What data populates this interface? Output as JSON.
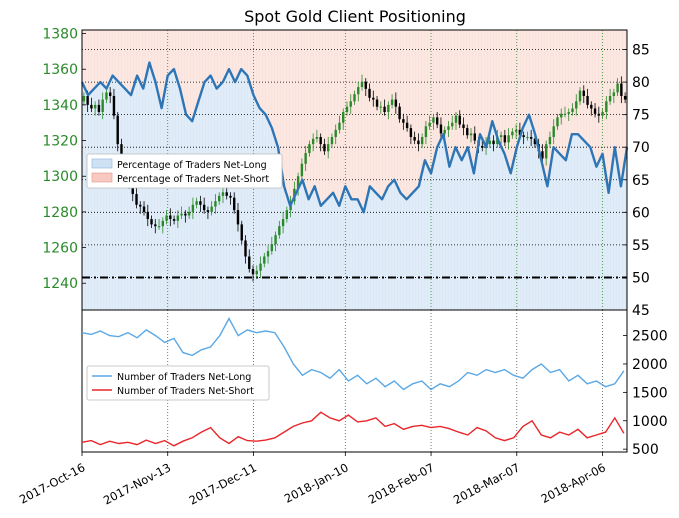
{
  "chart_data": [
    {
      "type": "line",
      "title": "Spot Gold Client Positioning",
      "left_axis": {
        "ylim": [
          1225,
          1382
        ],
        "ticks": [
          1240,
          1260,
          1280,
          1300,
          1320,
          1340,
          1360,
          1380
        ],
        "color": "#2a8a2a"
      },
      "right_axis": {
        "ylim": [
          45,
          88
        ],
        "ticks": [
          45,
          50,
          55,
          60,
          65,
          70,
          75,
          80,
          85
        ]
      },
      "x_tick_labels": [
        "2017-Oct-16",
        "2017-Nov-13",
        "2017-Dec-11",
        "2018-Jan-10",
        "2018-Feb-07",
        "2018-Mar-07",
        "2018-Apr-06"
      ],
      "x_range_days": [
        0,
        178
      ],
      "reference_line": 50,
      "legend": {
        "placement": "center-left",
        "entries": [
          "Percentage of Traders Net-Long",
          "Percentage of Traders Net-Short"
        ]
      },
      "colors": {
        "line": "#2e75b6",
        "long_fill": "#dbe9f7",
        "short_fill": "#fbe3dc",
        "candle_up": "#2a8a2a",
        "candle_down": "#000000"
      },
      "series": [
        {
          "name": "Percentage of Traders Net-Long",
          "x_days": [
            0,
            2,
            4,
            6,
            8,
            10,
            12,
            14,
            16,
            18,
            20,
            22,
            24,
            26,
            28,
            30,
            32,
            34,
            36,
            38,
            40,
            42,
            44,
            46,
            48,
            50,
            52,
            54,
            56,
            58,
            60,
            62,
            64,
            66,
            68,
            70,
            72,
            74,
            76,
            78,
            80,
            82,
            84,
            86,
            88,
            90,
            92,
            94,
            96,
            98,
            100,
            102,
            104,
            106,
            108,
            110,
            112,
            114,
            116,
            118,
            120,
            122,
            124,
            126,
            128,
            130,
            132,
            134,
            136,
            138,
            140,
            142,
            144,
            146,
            148,
            150,
            152,
            154,
            156,
            158,
            160,
            162,
            164,
            166,
            168,
            170,
            172,
            174,
            176,
            178
          ],
          "values": [
            80,
            78,
            79,
            80,
            79,
            81,
            80,
            79,
            78,
            81,
            79,
            83,
            80,
            76,
            81,
            82,
            79,
            75,
            74,
            77,
            80,
            81,
            79,
            80,
            82,
            80,
            82,
            81,
            78,
            76,
            75,
            73,
            70,
            64,
            61,
            63,
            65,
            62,
            64,
            61,
            62,
            63,
            61,
            64,
            62,
            62,
            60,
            64,
            63,
            62,
            64,
            65,
            63,
            62,
            63,
            64,
            68,
            66,
            70,
            72,
            67,
            70,
            68,
            70,
            66,
            72,
            70,
            74,
            71,
            69,
            66,
            70,
            73,
            75,
            72,
            68,
            64,
            70,
            69,
            68,
            72,
            72,
            71,
            70,
            67,
            69,
            63,
            70,
            64,
            70
          ]
        }
      ],
      "price_open": [
        1342,
        1345,
        1340,
        1338,
        1340,
        1336,
        1343,
        1347,
        1345,
        1334,
        1318,
        1308,
        1300,
        1295,
        1290,
        1284,
        1283,
        1280,
        1276,
        1273,
        1272,
        1272,
        1275,
        1278,
        1276,
        1275,
        1278,
        1279,
        1278,
        1280,
        1284,
        1286,
        1284,
        1281,
        1280,
        1283,
        1286,
        1289,
        1291,
        1289,
        1288,
        1281,
        1273,
        1264,
        1255,
        1248,
        1245,
        1247,
        1251,
        1255,
        1258,
        1262,
        1267,
        1272,
        1276,
        1281,
        1286,
        1293,
        1300,
        1307,
        1313,
        1318,
        1321,
        1322,
        1318,
        1314,
        1318,
        1322,
        1326,
        1330,
        1336,
        1339,
        1342,
        1346,
        1350,
        1353,
        1349,
        1344,
        1343,
        1339,
        1339,
        1336,
        1340,
        1343,
        1339,
        1332,
        1330,
        1327,
        1322,
        1320,
        1318,
        1322,
        1328,
        1330,
        1333,
        1329,
        1324,
        1326,
        1328,
        1330,
        1334,
        1329,
        1327,
        1323,
        1324,
        1320,
        1317,
        1316,
        1318,
        1320,
        1318,
        1322,
        1323,
        1319,
        1323,
        1325,
        1326,
        1323,
        1322,
        1322,
        1321,
        1318,
        1314,
        1310,
        1318,
        1322,
        1328,
        1333,
        1335,
        1335,
        1336,
        1338,
        1342,
        1348,
        1345,
        1340,
        1338,
        1335,
        1334,
        1336,
        1342,
        1345,
        1347,
        1352,
        1345
      ],
      "price_close": [
        1345,
        1340,
        1338,
        1340,
        1336,
        1343,
        1347,
        1345,
        1334,
        1318,
        1308,
        1300,
        1295,
        1290,
        1284,
        1283,
        1280,
        1276,
        1273,
        1272,
        1272,
        1275,
        1278,
        1276,
        1275,
        1278,
        1279,
        1278,
        1280,
        1284,
        1286,
        1284,
        1281,
        1280,
        1283,
        1286,
        1289,
        1291,
        1289,
        1288,
        1281,
        1273,
        1264,
        1255,
        1248,
        1245,
        1247,
        1251,
        1255,
        1258,
        1262,
        1267,
        1272,
        1276,
        1281,
        1286,
        1293,
        1300,
        1307,
        1313,
        1318,
        1321,
        1322,
        1318,
        1314,
        1318,
        1322,
        1326,
        1330,
        1336,
        1339,
        1342,
        1346,
        1350,
        1353,
        1349,
        1344,
        1343,
        1339,
        1339,
        1336,
        1340,
        1343,
        1339,
        1332,
        1330,
        1327,
        1322,
        1320,
        1318,
        1322,
        1328,
        1330,
        1333,
        1329,
        1324,
        1326,
        1328,
        1330,
        1334,
        1329,
        1327,
        1323,
        1324,
        1320,
        1317,
        1316,
        1318,
        1320,
        1318,
        1322,
        1323,
        1319,
        1323,
        1325,
        1326,
        1323,
        1322,
        1322,
        1321,
        1318,
        1314,
        1310,
        1318,
        1322,
        1328,
        1333,
        1335,
        1335,
        1336,
        1338,
        1342,
        1348,
        1345,
        1340,
        1338,
        1335,
        1334,
        1336,
        1342,
        1345,
        1347,
        1352,
        1345,
        1343
      ]
    },
    {
      "type": "line",
      "y_axis": {
        "ylim": [
          450,
          2950
        ],
        "ticks": [
          500,
          1000,
          1500,
          2000,
          2500
        ]
      },
      "legend": {
        "placement": "center-left",
        "entries": [
          "Number of Traders Net-Long",
          "Number of Traders Net-Short"
        ]
      },
      "colors": {
        "long": "#5aa8e6",
        "short": "#e8262a"
      },
      "series": [
        {
          "name": "Number of Traders Net-Long",
          "x_days": [
            0,
            3,
            6,
            9,
            12,
            15,
            18,
            21,
            24,
            27,
            30,
            33,
            36,
            39,
            42,
            45,
            48,
            51,
            54,
            57,
            60,
            63,
            66,
            69,
            72,
            75,
            78,
            81,
            84,
            87,
            90,
            93,
            96,
            99,
            102,
            105,
            108,
            111,
            114,
            117,
            120,
            123,
            126,
            129,
            132,
            135,
            138,
            141,
            144,
            147,
            150,
            153,
            156,
            159,
            162,
            165,
            168,
            171,
            174,
            177
          ],
          "values": [
            2550,
            2520,
            2580,
            2500,
            2480,
            2550,
            2460,
            2600,
            2500,
            2380,
            2450,
            2200,
            2150,
            2250,
            2300,
            2500,
            2800,
            2500,
            2600,
            2550,
            2580,
            2550,
            2300,
            2000,
            1800,
            1900,
            1850,
            1750,
            1900,
            1700,
            1800,
            1650,
            1750,
            1600,
            1700,
            1550,
            1650,
            1700,
            1550,
            1650,
            1600,
            1700,
            1850,
            1800,
            1900,
            1850,
            1900,
            1800,
            1750,
            1900,
            2000,
            1850,
            1900,
            1700,
            1800,
            1650,
            1700,
            1600,
            1650,
            1880
          ]
        },
        {
          "name": "Number of Traders Net-Short",
          "x_days": [
            0,
            3,
            6,
            9,
            12,
            15,
            18,
            21,
            24,
            27,
            30,
            33,
            36,
            39,
            42,
            45,
            48,
            51,
            54,
            57,
            60,
            63,
            66,
            69,
            72,
            75,
            78,
            81,
            84,
            87,
            90,
            93,
            96,
            99,
            102,
            105,
            108,
            111,
            114,
            117,
            120,
            123,
            126,
            129,
            132,
            135,
            138,
            141,
            144,
            147,
            150,
            153,
            156,
            159,
            162,
            165,
            168,
            171,
            174,
            177
          ],
          "values": [
            620,
            650,
            580,
            640,
            600,
            620,
            580,
            660,
            600,
            650,
            560,
            640,
            700,
            800,
            880,
            700,
            600,
            720,
            650,
            640,
            660,
            700,
            800,
            900,
            960,
            1000,
            1150,
            1050,
            1000,
            1100,
            980,
            1000,
            1050,
            900,
            950,
            850,
            900,
            920,
            880,
            900,
            860,
            800,
            750,
            880,
            820,
            700,
            650,
            700,
            900,
            1000,
            750,
            700,
            800,
            750,
            850,
            700,
            750,
            800,
            1050,
            780
          ]
        }
      ]
    }
  ]
}
